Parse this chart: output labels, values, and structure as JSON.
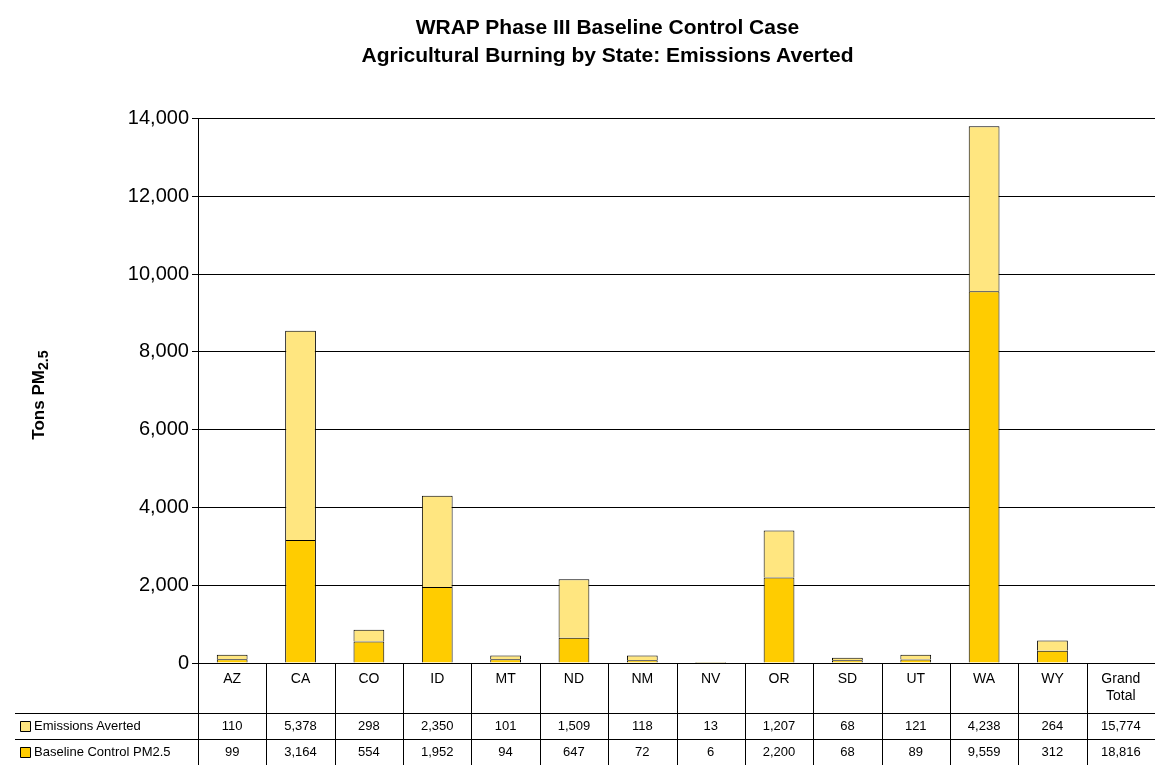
{
  "chart_data": {
    "type": "bar",
    "title": "WRAP Phase III Baseline Control Case",
    "subtitle": "Agricultural Burning by State: Emissions Averted",
    "ylabel": "Tons PM$_{2.5}$",
    "categories": [
      "AZ",
      "CA",
      "CO",
      "ID",
      "MT",
      "ND",
      "NM",
      "NV",
      "OR",
      "SD",
      "UT",
      "WA",
      "WY",
      "Grand Total"
    ],
    "series": [
      {
        "name": "Baseline Control PM2.5",
        "color": "#ffcc00",
        "values": [
          99,
          3164,
          554,
          1952,
          94,
          647,
          72,
          6,
          2200,
          68,
          89,
          9559,
          312,
          null
        ],
        "value_labels": [
          "99",
          "3,164",
          "554",
          "1,952",
          "94",
          "647",
          "72",
          "6",
          "2,200",
          "68",
          "89",
          "9,559",
          "312",
          "18,816"
        ]
      },
      {
        "name": "Emissions Averted",
        "color": "#ffe680",
        "values": [
          110,
          5378,
          298,
          2350,
          101,
          1509,
          118,
          13,
          1207,
          68,
          121,
          4238,
          264,
          null
        ],
        "value_labels": [
          "110",
          "5,378",
          "298",
          "2,350",
          "101",
          "1,509",
          "118",
          "13",
          "1,207",
          "68",
          "121",
          "4,238",
          "264",
          "15,774"
        ]
      }
    ],
    "stacked": true,
    "ylim": [
      0,
      14000
    ],
    "yticks": [
      0,
      {
        "value": 2000,
        "label": "2,000"
      },
      {
        "value": 4000,
        "label": "4,000"
      },
      {
        "value": 6000,
        "label": "6,000"
      },
      {
        "value": 8000,
        "label": "8,000"
      },
      {
        "value": 10000,
        "label": "10,000"
      },
      {
        "value": 12000,
        "label": "12,000"
      },
      {
        "value": 14000,
        "label": "14,000"
      }
    ],
    "grid": "y",
    "legend": "bottom left"
  }
}
